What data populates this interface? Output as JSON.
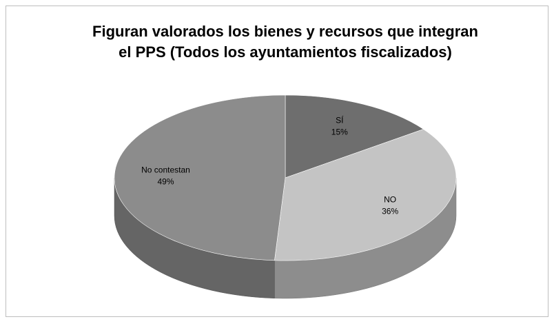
{
  "chart_data": {
    "type": "pie",
    "title": [
      "Figuran valorados los bienes y recursos que integran",
      "el PPS (Todos los ayuntamientos fiscalizados)"
    ],
    "categories": [
      "SÍ",
      "NO",
      "No contestan"
    ],
    "values": [
      15,
      36,
      49
    ],
    "value_labels": [
      "15%",
      "36%",
      "49%"
    ],
    "colors": [
      "#6e6e6e",
      "#c4c4c4",
      "#8c8c8c"
    ]
  }
}
